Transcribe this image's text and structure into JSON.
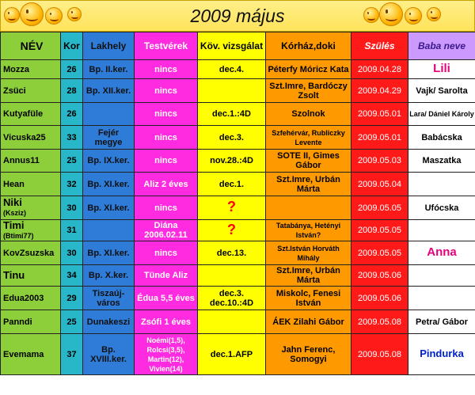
{
  "title": "2009 május",
  "headers": [
    "NÉV",
    "Kor",
    "Lakhely",
    "Testvérek",
    "Köv. vizsgálat",
    "Kórház,doki",
    "Szülés",
    "Baba neve"
  ],
  "rows": [
    {
      "nev": "Mozza",
      "nev2": "",
      "kor": "26",
      "lakhely": "Bp. II.ker.",
      "testverek": "nincs",
      "kov": "dec.4.",
      "korhaz": "Péterfy Móricz Kata",
      "szules": "2009.04.28",
      "baba": "Lili"
    },
    {
      "nev": "Zsüci",
      "nev2": "",
      "kor": "28",
      "lakhely": "Bp. XII.ker.",
      "testverek": "nincs",
      "kov": "",
      "korhaz": "Szt.Imre, Bardóczy Zsolt",
      "szules": "2009.04.29",
      "baba": "Vajk/ Sarolta"
    },
    {
      "nev": "Kutyafüle",
      "nev2": "",
      "kor": "26",
      "lakhely": "",
      "testverek": "nincs",
      "kov": "dec.1.:4D",
      "korhaz": "Szolnok",
      "szules": "2009.05.01",
      "baba": "Lara/ Dániel Károly"
    },
    {
      "nev": "Vicuska25",
      "nev2": "",
      "kor": "33",
      "lakhely": "Fejér megye",
      "testverek": "nincs",
      "kov": "dec.3.",
      "korhaz": "Szfehérvár, Rubliczky Levente",
      "szules": "2009.05.01",
      "baba": "Babácska"
    },
    {
      "nev": "Annus11",
      "nev2": "",
      "kor": "25",
      "lakhely": "Bp. IX.ker.",
      "testverek": "nincs",
      "kov": "nov.28.:4D",
      "korhaz": "SOTE II, Gimes Gábor",
      "szules": "2009.05.03",
      "baba": "Maszatka"
    },
    {
      "nev": "Hean",
      "nev2": "",
      "kor": "32",
      "lakhely": "Bp. XI.ker.",
      "testverek": "Aliz 2 éves",
      "kov": "dec.1.",
      "korhaz": "Szt.Imre, Urbán Márta",
      "szules": "2009.05.04",
      "baba": ""
    },
    {
      "nev": "Niki",
      "nev2": "(Ksziz)",
      "kor": "30",
      "lakhely": "Bp. XI.ker.",
      "testverek": "nincs",
      "kov": "?",
      "korhaz": "",
      "szules": "2009.05.05",
      "baba": "Ufócska"
    },
    {
      "nev": "Timi",
      "nev2": "(Btimi77)",
      "kor": "31",
      "lakhely": "",
      "testverek": "Diána 2006.02.11",
      "kov": "?",
      "korhaz": "Tatabánya, Hetényi István?",
      "szules": "2009.05.05",
      "baba": ""
    },
    {
      "nev": "KovZsuzska",
      "nev2": "",
      "kor": "30",
      "lakhely": "Bp. XI.ker.",
      "testverek": "nincs",
      "kov": "dec.13.",
      "korhaz": "Szt.István Horváth Mihály",
      "szules": "2009.05.05",
      "baba": "Anna"
    },
    {
      "nev": "Tinu",
      "nev2": "",
      "kor": "34",
      "lakhely": "Bp. X.ker.",
      "testverek": "Tünde Aliz",
      "kov": "",
      "korhaz": "Szt.Imre, Urbán Márta",
      "szules": "2009.05.06",
      "baba": ""
    },
    {
      "nev": "Edua2003",
      "nev2": "",
      "kor": "29",
      "lakhely": "Tiszaúj- város",
      "testverek": "Édua 5,5 éves",
      "kov": "dec.3. dec.10.:4D",
      "korhaz": "Miskolc, Fenesi István",
      "szules": "2009.05.06",
      "baba": ""
    },
    {
      "nev": "Panndi",
      "nev2": "",
      "kor": "25",
      "lakhely": "Dunakeszi",
      "testverek": "Zsófi 1 éves",
      "kov": "",
      "korhaz": "ÁEK Zilahi Gábor",
      "szules": "2009.05.08",
      "baba": "Petra/ Gábor"
    },
    {
      "nev": "Evemama",
      "nev2": "",
      "kor": "37",
      "lakhely": "Bp. XVIII.ker.",
      "testverek": "Noémi(1,5), Rolcsi(3,5), Martin(12), Vivien(14)",
      "kov": "dec.1.AFP",
      "korhaz": "Jahn Ferenc, Somogyi",
      "szules": "2009.05.08",
      "baba": "Pindurka"
    }
  ],
  "icons": [
    "smiley-icon"
  ]
}
